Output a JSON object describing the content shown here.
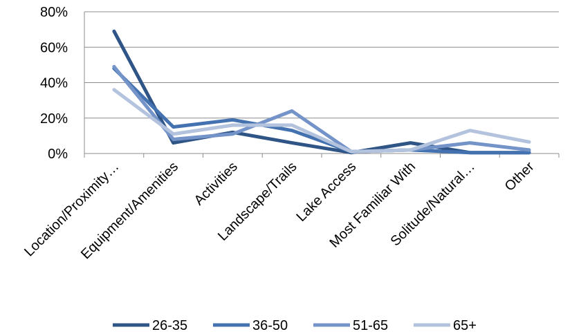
{
  "chart_data": {
    "type": "line",
    "categories": [
      "Location/Proximity…",
      "Equipment/Amenities",
      "Activities",
      "Landscape/Trails",
      "Lake Access",
      "Most Familiar With",
      "Solitude/Natural…",
      "Other"
    ],
    "series": [
      {
        "name": "26-35",
        "color": "#2F5486",
        "values": [
          69,
          6,
          12,
          6,
          0.5,
          6,
          0.5,
          0.5
        ]
      },
      {
        "name": "36-50",
        "color": "#4472B0",
        "values": [
          48,
          15,
          19,
          13,
          1,
          2,
          0.5,
          0.5
        ]
      },
      {
        "name": "51-65",
        "color": "#7393C9",
        "values": [
          49,
          8,
          11,
          24,
          1,
          2,
          6,
          2
        ]
      },
      {
        "name": "65+",
        "color": "#B3C3DE",
        "values": [
          36,
          11,
          16,
          16,
          1,
          2,
          13,
          6.5
        ]
      }
    ],
    "yticks": [
      "0%",
      "20%",
      "40%",
      "60%",
      "80%"
    ],
    "ylim": [
      0,
      80
    ],
    "grid": true,
    "legend": "bottom"
  }
}
